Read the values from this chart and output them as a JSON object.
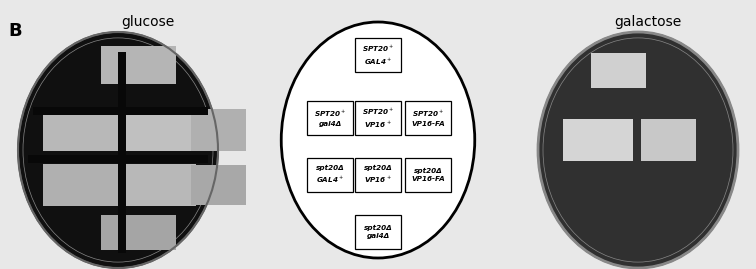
{
  "title_label": "B",
  "left_title": "glucose",
  "right_title": "galactose",
  "figure_bg": "#e8e8e8",
  "circle_diagram": {
    "boxes": [
      {
        "label": "SPT20$^+$\nGAL4$^+$",
        "col": 1,
        "row": 0
      },
      {
        "label": "SPT20$^+$\ngal4Δ",
        "col": 0,
        "row": 1
      },
      {
        "label": "SPT20$^+$\nVP16$^+$",
        "col": 1,
        "row": 1
      },
      {
        "label": "SPT20$^+$\nVP16-FA",
        "col": 2,
        "row": 1
      },
      {
        "label": "spt20Δ\nGAL4$^+$",
        "col": 0,
        "row": 2
      },
      {
        "label": "spt20Δ\nVP16$^+$",
        "col": 1,
        "row": 2
      },
      {
        "label": "spt20Δ\nVP16-FA",
        "col": 2,
        "row": 2
      },
      {
        "label": "spt20Δ\ngal4Δ",
        "col": 1,
        "row": 3
      }
    ]
  }
}
